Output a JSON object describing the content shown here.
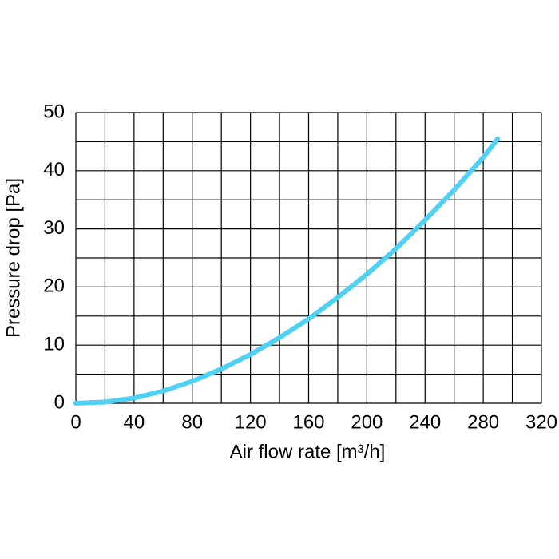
{
  "chart_data": {
    "type": "line",
    "x_label": "Air flow rate [m³/h]",
    "y_label": "Pressure drop [Pa]",
    "x": [
      0,
      20,
      40,
      60,
      80,
      100,
      120,
      140,
      160,
      180,
      200,
      220,
      240,
      260,
      280,
      290
    ],
    "series": [
      {
        "name": "Pressure drop",
        "color": "#4fd0f5",
        "values": [
          0,
          0.2,
          0.9,
          2.1,
          3.8,
          5.9,
          8.4,
          11.3,
          14.5,
          18.2,
          22.2,
          26.6,
          31.5,
          36.7,
          42.3,
          45.5
        ]
      }
    ],
    "xlim": [
      0,
      320
    ],
    "ylim": [
      0,
      50
    ],
    "xticks": [
      0,
      40,
      80,
      120,
      160,
      200,
      240,
      280,
      320
    ],
    "yticks": [
      0,
      10,
      20,
      30,
      40,
      50
    ],
    "xgrid": [
      0,
      20,
      40,
      60,
      80,
      100,
      120,
      140,
      160,
      180,
      200,
      220,
      240,
      260,
      280,
      300,
      320
    ],
    "ygrid": [
      0,
      5,
      10,
      15,
      20,
      25,
      30,
      35,
      40,
      45,
      50
    ],
    "grid": true
  }
}
